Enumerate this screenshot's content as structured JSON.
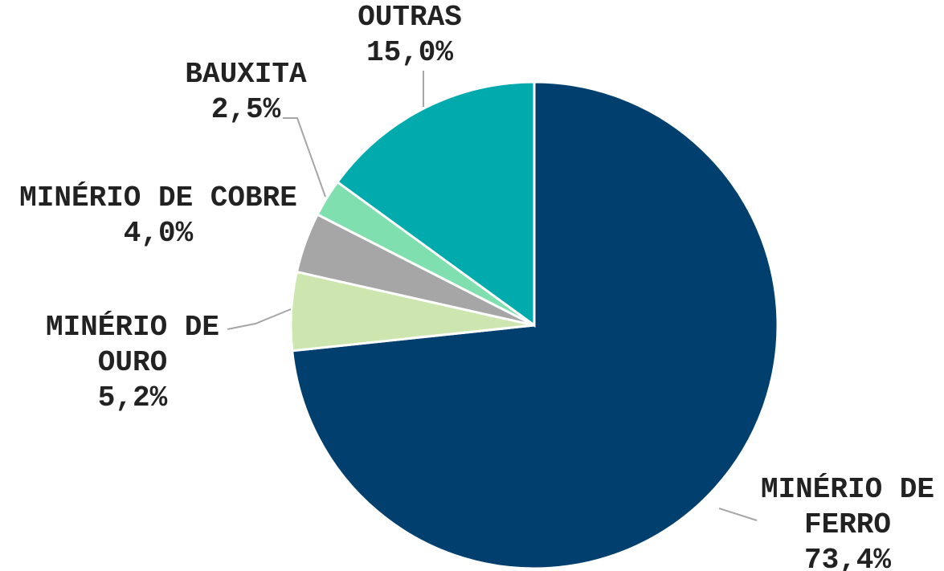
{
  "chart_data": {
    "type": "pie",
    "categories": [
      "MINÉRIO DE FERRO",
      "MINÉRIO DE OURO",
      "MINÉRIO DE COBRE",
      "BAUXITA",
      "OUTRAS"
    ],
    "values": [
      73.4,
      5.2,
      4.0,
      2.5,
      15.0
    ],
    "value_labels": [
      "73,4%",
      "5,2%",
      "4,0%",
      "2,5%",
      "15,0%"
    ],
    "colors": [
      "#003f6e",
      "#cde6b0",
      "#a6a6a6",
      "#7fdfae",
      "#00aaad"
    ]
  }
}
